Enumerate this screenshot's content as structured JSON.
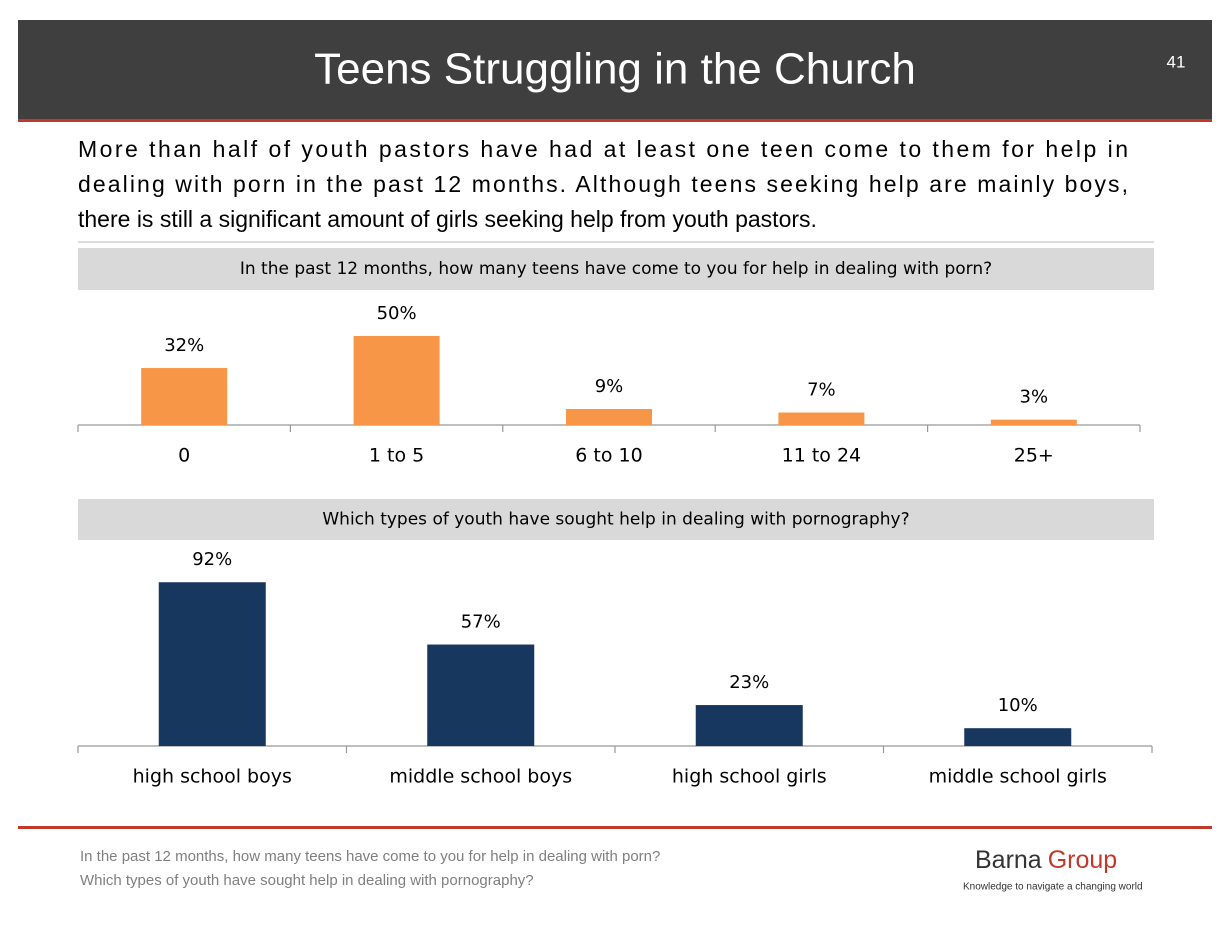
{
  "header": {
    "title": "Teens Struggling in the Church",
    "page_number": "41"
  },
  "intro": [
    "More than half of youth pastors have had at least one teen come to them for help in",
    "dealing with porn in the past 12 months. Although teens seeking help are mainly boys,",
    "there is still a significant amount of girls seeking help from youth pastors."
  ],
  "chart_data": [
    {
      "type": "bar",
      "title": "In the past 12 months, how many teens have come to you for help in dealing with porn?",
      "categories": [
        "0",
        "1 to 5",
        "6 to 10",
        "11 to  24",
        "25+"
      ],
      "values": [
        32,
        50,
        9,
        7,
        3
      ],
      "value_labels": [
        "32%",
        "50%",
        "9%",
        "7%",
        "3%"
      ],
      "color": "#f79646"
    },
    {
      "type": "bar",
      "title": "Which types of youth have sought help in dealing with pornography?",
      "categories": [
        "high school boys",
        "middle school boys",
        "high school girls",
        "middle school girls"
      ],
      "values": [
        92,
        57,
        23,
        10
      ],
      "value_labels": [
        "92%",
        "57%",
        "23%",
        "10%"
      ],
      "color": "#17375e"
    }
  ],
  "footer": {
    "lines": [
      "In the past 12 months, how many teens have come to you for help in dealing with porn?",
      "Which types of youth have sought help in dealing with pornography?"
    ],
    "logo_first": "Barna",
    "logo_second": "Group",
    "tagline": "Knowledge to navigate a changing world"
  }
}
